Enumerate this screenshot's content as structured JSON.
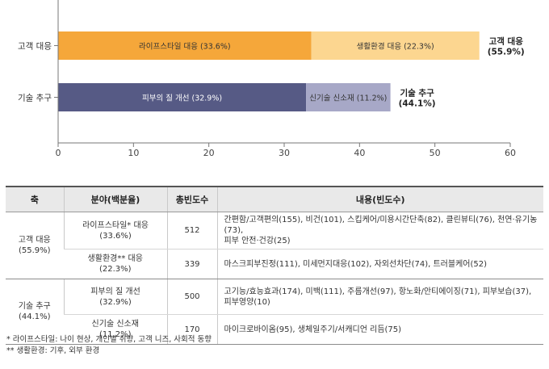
{
  "chart_data": {
    "type": "stacked-bar-horizontal",
    "orientation": "horizontal",
    "categories": [
      "고객 대응",
      "기술 추구"
    ],
    "series": [
      {
        "segments": [
          {
            "value": 33.6,
            "label": "라이프스타일 대응 (33.6%)",
            "color": "#f5a73a"
          },
          {
            "value": 22.3,
            "label": "생활환경 대응 (22.3%)",
            "color": "#fcd690"
          }
        ],
        "total_label": [
          "고객 대응",
          "(55.9%)"
        ]
      },
      {
        "segments": [
          {
            "value": 32.9,
            "label": "피부의 질 개선 (32.9%)",
            "color": "#565a85"
          },
          {
            "value": 11.2,
            "label": "신기술 신소재 (11.2%)",
            "color": "#a7a8c7"
          }
        ],
        "total_label": [
          "기술 추구",
          "(44.1%)"
        ]
      }
    ],
    "xlim": [
      0,
      60
    ],
    "xticks": [
      "0",
      "10",
      "20",
      "30",
      "40",
      "50",
      "60"
    ],
    "grid": false,
    "legend": "none"
  },
  "table": {
    "headers": [
      "축",
      "분야(백분율)",
      "총빈도수",
      "내용(빈도수)"
    ],
    "groups": [
      {
        "axis": [
          "고객 대응",
          "(55.9%)"
        ],
        "rows": [
          {
            "field": [
              "라이프스타일* 대응",
              "(33.6%)"
            ],
            "count": "512",
            "content": [
              "간편함/고객편의(155), 비건(101), 스킵케어/미용시간단축(82), 클린뷰티(76), 천연·유기농(73),",
              "피부 안전·건강(25)"
            ]
          },
          {
            "field": [
              "생활환경** 대응",
              "(22.3%)"
            ],
            "count": "339",
            "content": [
              "마스크피부진정(111), 미세먼지대응(102), 자외선차단(74), 트러블케어(52)"
            ]
          }
        ]
      },
      {
        "axis": [
          "기술 추구",
          "(44.1%)"
        ],
        "rows": [
          {
            "field": [
              "피부의 질 개선",
              "(32.9%)"
            ],
            "count": "500",
            "content": [
              "고기능/효능효과(174), 미백(111), 주름개선(97), 항노화/안티에이징(71), 피부보습(37),",
              "피부영양(10)"
            ]
          },
          {
            "field": [
              "신기술 신소재",
              "(11.2%)"
            ],
            "count": "170",
            "content": [
              "마이크로바이옴(95), 생체일주기/서캐디언 리듬(75)"
            ]
          }
        ]
      }
    ]
  },
  "notes": [
    "* 라이프스타일: 나이 현상, 개인별 취향, 고객 니즈, 사회적 동향",
    "** 생활환경: 기후, 외부 환경"
  ]
}
